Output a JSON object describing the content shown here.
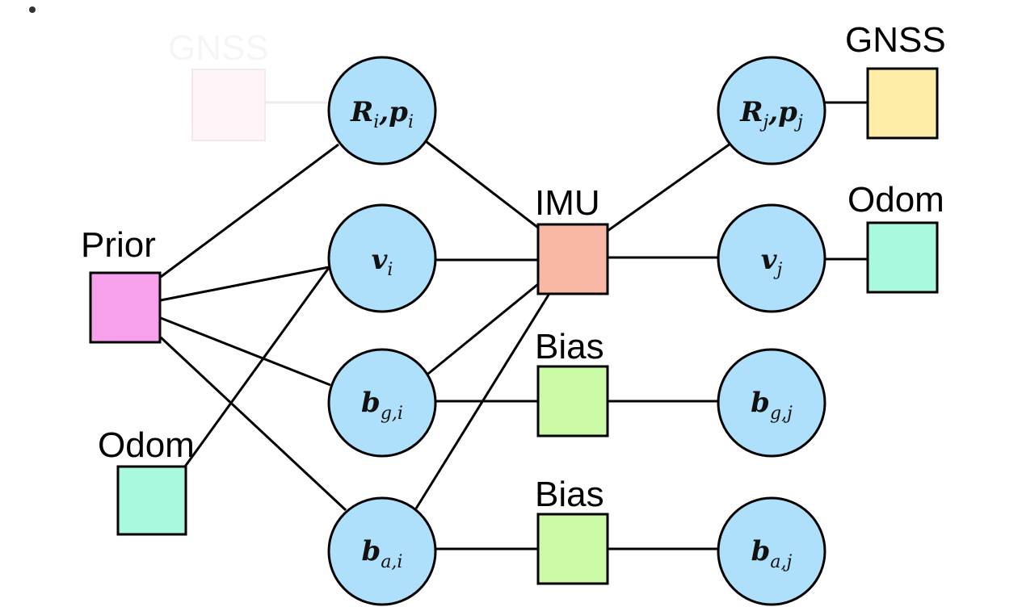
{
  "labels": {
    "gnss_faded": "GNSS",
    "gnss": "GNSS",
    "odom_right": "Odom",
    "prior": "Prior",
    "imu": "IMU",
    "bias_gyro": "Bias",
    "bias_acc": "Bias",
    "odom_left": "Odom"
  },
  "variables": {
    "pose_i": {
      "a": "R",
      "ai": "i",
      "b": "p",
      "bi": "i"
    },
    "pose_j": {
      "a": "R",
      "ai": "j",
      "b": "p",
      "bi": "j"
    },
    "vel_i": {
      "a": "v",
      "ai": "i"
    },
    "vel_j": {
      "a": "v",
      "ai": "j"
    },
    "bg_i": {
      "a": "b",
      "ai": "g,i"
    },
    "bg_j": {
      "a": "b",
      "ai": "g,j"
    },
    "ba_i": {
      "a": "b",
      "ai": "a,i"
    },
    "ba_j": {
      "a": "b",
      "ai": "a,j"
    }
  },
  "colors": {
    "variable_fill": "#aee0fb",
    "prior_fill": "#f7a1ec",
    "imu_fill": "#f9b8a6",
    "gnss_fill": "#fdeda6",
    "odom_fill": "#a8f9dd",
    "bias_fill": "#cbfca5",
    "ghost_fill": "#fff4f8"
  }
}
